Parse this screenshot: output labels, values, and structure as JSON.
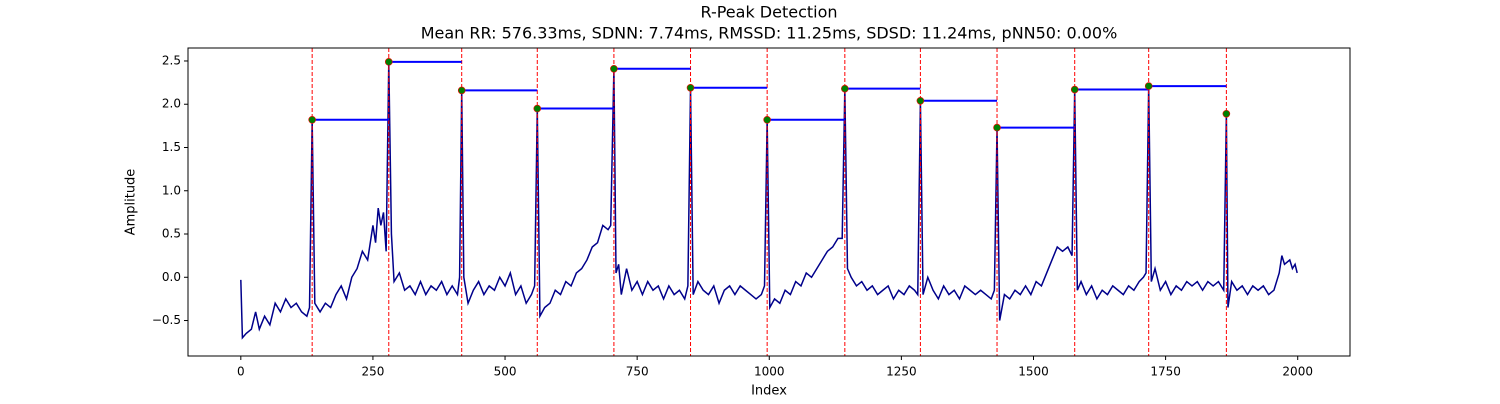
{
  "chart_data": {
    "type": "line",
    "title": "R-Peak Detection",
    "subtitle": "Mean RR: 576.33ms, SDNN: 7.74ms, RMSSD: 11.25ms, SDSD: 11.24ms, pNN50: 0.00%",
    "x_label": "Index",
    "y_label": "Amplitude",
    "xlim": [
      -99.95,
      2098.95
    ],
    "ylim": [
      -0.91,
      2.65
    ],
    "xticks": [
      0,
      250,
      500,
      750,
      1000,
      1250,
      1500,
      1750,
      2000
    ],
    "yticks": [
      {
        "value": -0.5,
        "label": "−0.5"
      },
      {
        "value": 0,
        "label": "0.0"
      },
      0.5,
      {
        "value": 1,
        "label": "1.0"
      },
      1.5,
      {
        "value": 2,
        "label": "2.0"
      },
      2.5
    ],
    "peak_line_color": "red",
    "rr_line_color": "blue",
    "series": [
      {
        "type": "line",
        "color": "#00008b",
        "x": [
          0,
          3,
          10,
          20,
          28,
          35,
          45,
          55,
          65,
          75,
          85,
          95,
          105,
          115,
          125,
          130,
          135,
          140,
          150,
          160,
          170,
          180,
          190,
          200,
          210,
          220,
          230,
          240,
          250,
          255,
          260,
          265,
          270,
          275,
          280,
          285,
          290,
          300,
          310,
          320,
          330,
          340,
          350,
          360,
          370,
          380,
          390,
          400,
          410,
          414,
          418,
          422,
          430,
          440,
          450,
          460,
          470,
          480,
          490,
          500,
          510,
          520,
          530,
          540,
          550,
          556,
          561,
          566,
          575,
          585,
          595,
          605,
          615,
          625,
          635,
          645,
          655,
          665,
          675,
          685,
          695,
          700,
          706,
          710,
          715,
          720,
          730,
          740,
          750,
          760,
          770,
          780,
          790,
          800,
          810,
          820,
          830,
          840,
          846,
          851,
          856,
          865,
          875,
          885,
          895,
          905,
          915,
          925,
          935,
          945,
          955,
          965,
          975,
          985,
          991,
          996,
          1001,
          1010,
          1020,
          1030,
          1040,
          1050,
          1060,
          1070,
          1080,
          1090,
          1100,
          1110,
          1120,
          1130,
          1138,
          1143,
          1148,
          1155,
          1165,
          1175,
          1185,
          1195,
          1205,
          1215,
          1225,
          1235,
          1245,
          1255,
          1265,
          1275,
          1281,
          1286,
          1291,
          1300,
          1310,
          1320,
          1330,
          1340,
          1350,
          1360,
          1370,
          1380,
          1390,
          1400,
          1410,
          1420,
          1426,
          1431,
          1436,
          1445,
          1455,
          1465,
          1475,
          1485,
          1495,
          1505,
          1515,
          1525,
          1535,
          1545,
          1555,
          1565,
          1573,
          1578,
          1583,
          1590,
          1600,
          1610,
          1620,
          1630,
          1640,
          1650,
          1660,
          1670,
          1680,
          1690,
          1700,
          1708,
          1713,
          1718,
          1723,
          1730,
          1740,
          1750,
          1760,
          1770,
          1780,
          1790,
          1800,
          1810,
          1820,
          1830,
          1840,
          1850,
          1860,
          1865,
          1868,
          1875,
          1885,
          1895,
          1905,
          1915,
          1925,
          1935,
          1945,
          1955,
          1965,
          1970,
          1975,
          1985,
          1990,
          1995,
          1999
        ],
        "values": [
          -0.03,
          -0.7,
          -0.65,
          -0.6,
          -0.4,
          -0.6,
          -0.45,
          -0.55,
          -0.3,
          -0.4,
          -0.25,
          -0.35,
          -0.3,
          -0.4,
          -0.45,
          -0.35,
          1.82,
          -0.3,
          -0.4,
          -0.3,
          -0.35,
          -0.2,
          -0.1,
          -0.25,
          0.0,
          0.1,
          0.3,
          0.2,
          0.6,
          0.4,
          0.8,
          0.6,
          0.75,
          0.3,
          2.49,
          0.5,
          -0.05,
          0.05,
          -0.15,
          -0.1,
          -0.2,
          -0.05,
          -0.2,
          -0.1,
          -0.15,
          -0.05,
          -0.2,
          -0.1,
          -0.2,
          0.0,
          2.16,
          0.0,
          -0.3,
          -0.15,
          -0.05,
          -0.2,
          -0.1,
          -0.15,
          0.0,
          -0.1,
          0.05,
          -0.2,
          -0.1,
          -0.3,
          -0.2,
          -0.1,
          1.95,
          -0.45,
          -0.35,
          -0.3,
          -0.15,
          -0.2,
          -0.05,
          -0.1,
          0.05,
          0.1,
          0.2,
          0.35,
          0.4,
          0.6,
          0.55,
          0.6,
          2.41,
          0.05,
          0.15,
          -0.2,
          0.1,
          -0.15,
          -0.05,
          -0.2,
          -0.05,
          -0.15,
          -0.1,
          -0.25,
          -0.1,
          -0.2,
          -0.15,
          -0.25,
          -0.1,
          2.19,
          -0.2,
          -0.05,
          -0.15,
          -0.2,
          -0.1,
          -0.3,
          -0.15,
          -0.1,
          -0.2,
          -0.1,
          -0.15,
          -0.2,
          -0.25,
          -0.2,
          -0.1,
          1.82,
          -0.35,
          -0.25,
          -0.3,
          -0.15,
          -0.2,
          -0.05,
          -0.1,
          0.05,
          0.0,
          0.1,
          0.2,
          0.3,
          0.35,
          0.45,
          0.45,
          2.18,
          0.1,
          0.0,
          -0.1,
          -0.05,
          -0.15,
          -0.1,
          -0.2,
          -0.15,
          -0.1,
          -0.25,
          -0.15,
          -0.2,
          -0.1,
          -0.15,
          -0.2,
          2.04,
          -0.2,
          0.0,
          -0.15,
          -0.25,
          -0.1,
          -0.2,
          -0.15,
          -0.25,
          -0.1,
          -0.15,
          -0.2,
          -0.15,
          -0.2,
          -0.25,
          -0.15,
          1.73,
          -0.5,
          -0.2,
          -0.25,
          -0.15,
          -0.2,
          -0.1,
          -0.2,
          -0.05,
          -0.1,
          0.05,
          0.2,
          0.35,
          0.3,
          0.35,
          0.25,
          2.17,
          -0.15,
          -0.05,
          -0.2,
          -0.1,
          -0.25,
          -0.15,
          -0.2,
          -0.1,
          -0.15,
          -0.2,
          -0.1,
          -0.15,
          -0.05,
          0.0,
          0.05,
          2.21,
          -0.05,
          0.1,
          -0.15,
          -0.05,
          -0.2,
          -0.1,
          -0.15,
          -0.05,
          -0.1,
          -0.05,
          -0.15,
          -0.05,
          -0.1,
          -0.05,
          -0.15,
          1.89,
          -0.35,
          -0.05,
          -0.15,
          -0.1,
          -0.2,
          -0.1,
          -0.15,
          -0.1,
          -0.2,
          -0.15,
          0.05,
          0.25,
          0.15,
          0.2,
          0.1,
          0.15,
          0.05
        ]
      },
      {
        "type": "scatter",
        "color": "green",
        "x": [
          135,
          280,
          418,
          561,
          706,
          851,
          996,
          1143,
          1286,
          1431,
          1578,
          1718,
          1865
        ],
        "values": [
          1.82,
          2.49,
          2.16,
          1.95,
          2.41,
          2.19,
          1.82,
          2.18,
          2.04,
          1.73,
          2.17,
          2.21,
          1.89
        ]
      }
    ]
  }
}
